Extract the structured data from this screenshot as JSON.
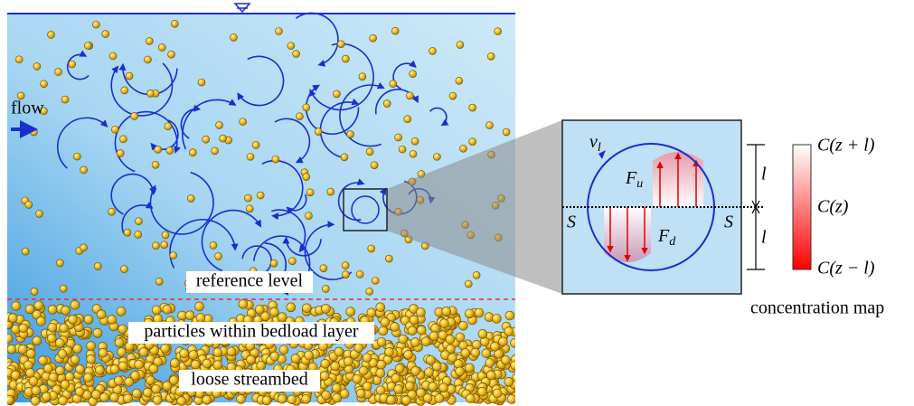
{
  "water": {
    "flow": "flow",
    "reference_level": "reference level",
    "bedload": "particles within bedload layer",
    "streambed": "loose streambed"
  },
  "inset": {
    "velocity": {
      "base": "v",
      "sub": "l"
    },
    "upward_force": {
      "base": "F",
      "sub": "u"
    },
    "downward_force": {
      "base": "F",
      "sub": "d"
    },
    "section": [
      "S",
      "S"
    ],
    "length": [
      "l",
      "l"
    ]
  },
  "concentration_map": {
    "title": "concentration map",
    "labels": [
      "C(z + l)",
      "C(z)",
      "C(z − l)"
    ]
  }
}
